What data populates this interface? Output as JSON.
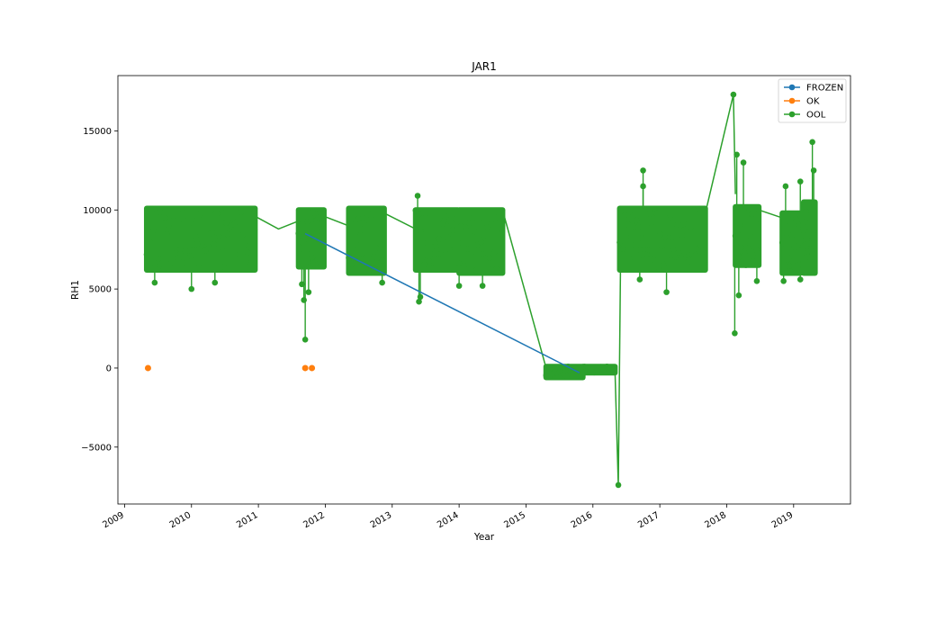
{
  "chart_data": {
    "type": "line",
    "title": "JAR1",
    "xlabel": "Year",
    "ylabel": "RH1",
    "xlim": [
      2008.9,
      2019.85
    ],
    "ylim": [
      -8600,
      18500
    ],
    "y_ticks": [
      -5000,
      0,
      5000,
      10000,
      15000
    ],
    "y_tick_labels": [
      "−5000",
      "0",
      "5000",
      "10000",
      "15000"
    ],
    "x_ticks": [
      2009,
      2010,
      2011,
      2012,
      2013,
      2014,
      2015,
      2016,
      2017,
      2018,
      2019
    ],
    "x_tick_labels": [
      "2009",
      "2010",
      "2011",
      "2012",
      "2013",
      "2014",
      "2015",
      "2016",
      "2017",
      "2018",
      "2019"
    ],
    "grid": false,
    "legend_position": "top-right",
    "legend": [
      "FROZEN",
      "OK",
      "OOL"
    ],
    "series": [
      {
        "name": "FROZEN",
        "color": "#1f77b4",
        "marker": "circle",
        "points": [
          [
            2011.7,
            8500
          ],
          [
            2015.8,
            -300
          ]
        ]
      },
      {
        "name": "OK",
        "color": "#ff7f0e",
        "marker": "circle",
        "points": [
          [
            2009.35,
            0
          ],
          [
            2011.7,
            0
          ],
          [
            2011.8,
            0
          ]
        ]
      },
      {
        "name": "OOL",
        "color": "#2ca02c",
        "marker": "circle",
        "segments": [
          {
            "x0": 2009.33,
            "x1": 2010.95,
            "lo": 6200,
            "hi": 10100,
            "outliers": [
              [
                2009.45,
                5400
              ],
              [
                2010.0,
                5000
              ],
              [
                2010.35,
                5400
              ]
            ]
          },
          {
            "x0": 2011.6,
            "x1": 2011.98,
            "lo": 6400,
            "hi": 10000,
            "outliers": [
              [
                2011.65,
                5300
              ],
              [
                2011.68,
                4300
              ],
              [
                2011.7,
                1800
              ],
              [
                2011.75,
                4800
              ],
              [
                2011.8,
                7000
              ]
            ]
          },
          {
            "x0": 2012.35,
            "x1": 2012.88,
            "lo": 6000,
            "hi": 10100,
            "outliers": [
              [
                2012.85,
                5400
              ]
            ]
          },
          {
            "x0": 2013.35,
            "x1": 2013.98,
            "lo": 6200,
            "hi": 10000,
            "outliers": [
              [
                2013.38,
                10900
              ],
              [
                2013.4,
                4200
              ],
              [
                2013.42,
                4500
              ]
            ]
          },
          {
            "x0": 2014.0,
            "x1": 2014.65,
            "lo": 6000,
            "hi": 10000,
            "outliers": [
              [
                2014.0,
                5200
              ],
              [
                2014.35,
                5200
              ]
            ]
          },
          {
            "x0": 2015.3,
            "x1": 2015.85,
            "lo": -600,
            "hi": 100,
            "outliers": []
          },
          {
            "x0": 2015.85,
            "x1": 2016.33,
            "lo": -300,
            "hi": 100,
            "outliers": []
          },
          {
            "x0": 2016.4,
            "x1": 2017.68,
            "lo": 6200,
            "hi": 10100,
            "outliers": [
              [
                2016.75,
                12500
              ],
              [
                2016.75,
                11500
              ],
              [
                2017.1,
                4800
              ],
              [
                2016.7,
                5600
              ]
            ]
          },
          {
            "x0": 2018.13,
            "x1": 2018.48,
            "lo": 6500,
            "hi": 10200,
            "outliers": [
              [
                2018.15,
                13500
              ],
              [
                2018.25,
                13000
              ],
              [
                2018.18,
                4600
              ],
              [
                2018.12,
                2200
              ],
              [
                2018.45,
                5500
              ]
            ]
          },
          {
            "x0": 2018.83,
            "x1": 2019.1,
            "lo": 6000,
            "hi": 9800,
            "outliers": [
              [
                2018.88,
                11500
              ],
              [
                2018.85,
                5500
              ],
              [
                2019.1,
                11800
              ],
              [
                2019.1,
                5600
              ]
            ]
          },
          {
            "x0": 2019.15,
            "x1": 2019.32,
            "lo": 6000,
            "hi": 10500,
            "outliers": [
              [
                2019.28,
                14300
              ],
              [
                2019.3,
                12500
              ]
            ]
          }
        ],
        "connectors": [
          [
            [
              2010.95,
              9600
            ],
            [
              2011.3,
              8800
            ],
            [
              2011.6,
              9300
            ]
          ],
          [
            [
              2011.98,
              9600
            ],
            [
              2012.35,
              9000
            ]
          ],
          [
            [
              2012.88,
              9800
            ],
            [
              2013.35,
              8800
            ]
          ],
          [
            [
              2014.65,
              10000
            ],
            [
              2015.3,
              0
            ]
          ],
          [
            [
              2016.33,
              -100
            ],
            [
              2016.38,
              -7400
            ],
            [
              2016.42,
              9500
            ]
          ],
          [
            [
              2017.68,
              9800
            ],
            [
              2018.1,
              17300
            ],
            [
              2018.13,
              11000
            ]
          ],
          [
            [
              2018.48,
              10000
            ],
            [
              2018.83,
              9500
            ]
          ],
          [
            [
              2019.1,
              7500
            ],
            [
              2019.15,
              9000
            ]
          ]
        ],
        "isolated": [
          [
            2016.38,
            -7400
          ],
          [
            2018.1,
            17300
          ]
        ]
      }
    ]
  }
}
